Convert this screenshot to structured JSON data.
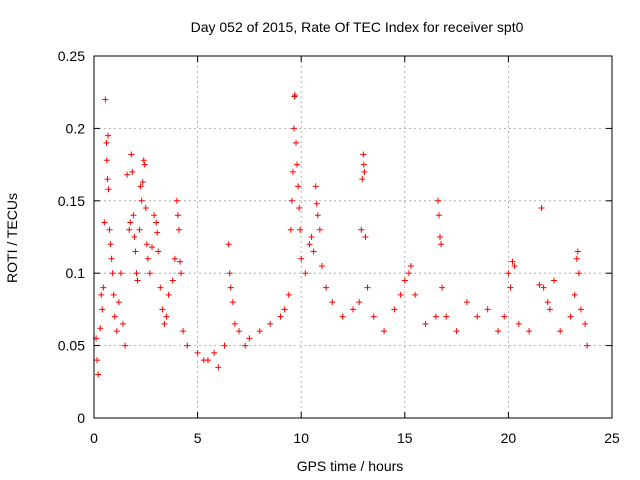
{
  "chart_data": {
    "type": "scatter",
    "title": "Day 052 of 2015, Rate Of TEC Index for receiver spt0",
    "xlabel": "GPS time / hours",
    "ylabel": "ROTI / TECUs",
    "xlim": [
      0,
      25
    ],
    "ylim": [
      0,
      0.25
    ],
    "x_ticks": [
      0,
      5,
      10,
      15,
      20,
      25
    ],
    "x_tick_labels": [
      "0",
      "5",
      "10",
      "15",
      "20",
      "25"
    ],
    "y_ticks": [
      0,
      0.05,
      0.1,
      0.15,
      0.2,
      0.25
    ],
    "y_tick_labels": [
      "0",
      "0.05",
      "0.1",
      "0.15",
      "0.2",
      "0.25"
    ],
    "grid": true,
    "marker": "plus",
    "marker_color": "#ff0000",
    "series": [
      {
        "points": [
          [
            0.1,
            0.055
          ],
          [
            0.15,
            0.04
          ],
          [
            0.2,
            0.03
          ],
          [
            0.3,
            0.062
          ],
          [
            0.35,
            0.085
          ],
          [
            0.4,
            0.075
          ],
          [
            0.45,
            0.09
          ],
          [
            0.5,
            0.135
          ],
          [
            0.55,
            0.22
          ],
          [
            0.6,
            0.19
          ],
          [
            0.62,
            0.178
          ],
          [
            0.65,
            0.165
          ],
          [
            0.68,
            0.195
          ],
          [
            0.7,
            0.158
          ],
          [
            0.75,
            0.13
          ],
          [
            0.8,
            0.12
          ],
          [
            0.85,
            0.11
          ],
          [
            0.9,
            0.1
          ],
          [
            0.95,
            0.085
          ],
          [
            1.0,
            0.07
          ],
          [
            1.1,
            0.06
          ],
          [
            1.2,
            0.08
          ],
          [
            1.3,
            0.1
          ],
          [
            1.4,
            0.065
          ],
          [
            1.5,
            0.05
          ],
          [
            1.6,
            0.168
          ],
          [
            1.7,
            0.13
          ],
          [
            1.75,
            0.135
          ],
          [
            1.8,
            0.182
          ],
          [
            1.85,
            0.17
          ],
          [
            1.9,
            0.14
          ],
          [
            1.95,
            0.125
          ],
          [
            2.0,
            0.115
          ],
          [
            2.05,
            0.1
          ],
          [
            2.1,
            0.095
          ],
          [
            2.2,
            0.13
          ],
          [
            2.25,
            0.16
          ],
          [
            2.3,
            0.15
          ],
          [
            2.35,
            0.163
          ],
          [
            2.4,
            0.178
          ],
          [
            2.45,
            0.175
          ],
          [
            2.5,
            0.145
          ],
          [
            2.55,
            0.12
          ],
          [
            2.6,
            0.11
          ],
          [
            2.7,
            0.1
          ],
          [
            2.8,
            0.118
          ],
          [
            2.9,
            0.14
          ],
          [
            3.0,
            0.135
          ],
          [
            3.05,
            0.128
          ],
          [
            3.1,
            0.115
          ],
          [
            3.2,
            0.09
          ],
          [
            3.3,
            0.075
          ],
          [
            3.4,
            0.065
          ],
          [
            3.5,
            0.07
          ],
          [
            3.6,
            0.085
          ],
          [
            3.8,
            0.095
          ],
          [
            3.9,
            0.11
          ],
          [
            4.0,
            0.15
          ],
          [
            4.05,
            0.14
          ],
          [
            4.1,
            0.13
          ],
          [
            4.15,
            0.108
          ],
          [
            4.2,
            0.1
          ],
          [
            4.3,
            0.06
          ],
          [
            4.5,
            0.05
          ],
          [
            5.0,
            0.045
          ],
          [
            5.3,
            0.04
          ],
          [
            5.5,
            0.04
          ],
          [
            5.8,
            0.045
          ],
          [
            6.0,
            0.035
          ],
          [
            6.3,
            0.05
          ],
          [
            6.5,
            0.12
          ],
          [
            6.55,
            0.1
          ],
          [
            6.6,
            0.09
          ],
          [
            6.7,
            0.08
          ],
          [
            6.8,
            0.065
          ],
          [
            7.0,
            0.06
          ],
          [
            7.3,
            0.05
          ],
          [
            7.5,
            0.055
          ],
          [
            8.0,
            0.06
          ],
          [
            8.5,
            0.065
          ],
          [
            9.0,
            0.07
          ],
          [
            9.2,
            0.075
          ],
          [
            9.4,
            0.085
          ],
          [
            9.5,
            0.13
          ],
          [
            9.55,
            0.15
          ],
          [
            9.6,
            0.17
          ],
          [
            9.65,
            0.2
          ],
          [
            9.68,
            0.222
          ],
          [
            9.7,
            0.223
          ],
          [
            9.75,
            0.19
          ],
          [
            9.8,
            0.175
          ],
          [
            9.85,
            0.16
          ],
          [
            9.9,
            0.145
          ],
          [
            9.95,
            0.13
          ],
          [
            10.0,
            0.11
          ],
          [
            10.2,
            0.1
          ],
          [
            10.4,
            0.12
          ],
          [
            10.5,
            0.125
          ],
          [
            10.6,
            0.115
          ],
          [
            10.7,
            0.16
          ],
          [
            10.75,
            0.148
          ],
          [
            10.8,
            0.14
          ],
          [
            10.9,
            0.13
          ],
          [
            11.0,
            0.105
          ],
          [
            11.2,
            0.09
          ],
          [
            11.5,
            0.08
          ],
          [
            12.0,
            0.07
          ],
          [
            12.5,
            0.075
          ],
          [
            12.8,
            0.08
          ],
          [
            12.9,
            0.13
          ],
          [
            12.95,
            0.165
          ],
          [
            13.0,
            0.182
          ],
          [
            13.02,
            0.175
          ],
          [
            13.05,
            0.17
          ],
          [
            13.1,
            0.125
          ],
          [
            13.2,
            0.09
          ],
          [
            13.5,
            0.07
          ],
          [
            14.0,
            0.06
          ],
          [
            14.5,
            0.075
          ],
          [
            14.8,
            0.085
          ],
          [
            15.0,
            0.095
          ],
          [
            15.2,
            0.1
          ],
          [
            15.3,
            0.105
          ],
          [
            15.5,
            0.085
          ],
          [
            16.0,
            0.065
          ],
          [
            16.5,
            0.07
          ],
          [
            16.6,
            0.15
          ],
          [
            16.65,
            0.14
          ],
          [
            16.7,
            0.125
          ],
          [
            16.75,
            0.12
          ],
          [
            16.8,
            0.09
          ],
          [
            17.0,
            0.07
          ],
          [
            17.5,
            0.06
          ],
          [
            18.0,
            0.08
          ],
          [
            18.5,
            0.07
          ],
          [
            19.0,
            0.075
          ],
          [
            19.5,
            0.06
          ],
          [
            19.8,
            0.07
          ],
          [
            20.0,
            0.1
          ],
          [
            20.1,
            0.09
          ],
          [
            20.2,
            0.108
          ],
          [
            20.3,
            0.105
          ],
          [
            20.5,
            0.065
          ],
          [
            21.0,
            0.06
          ],
          [
            21.5,
            0.092
          ],
          [
            21.6,
            0.145
          ],
          [
            21.7,
            0.09
          ],
          [
            21.9,
            0.08
          ],
          [
            22.0,
            0.075
          ],
          [
            22.2,
            0.095
          ],
          [
            22.5,
            0.06
          ],
          [
            23.0,
            0.07
          ],
          [
            23.2,
            0.085
          ],
          [
            23.3,
            0.11
          ],
          [
            23.35,
            0.115
          ],
          [
            23.4,
            0.1
          ],
          [
            23.5,
            0.075
          ],
          [
            23.7,
            0.065
          ],
          [
            23.8,
            0.05
          ]
        ]
      }
    ]
  }
}
